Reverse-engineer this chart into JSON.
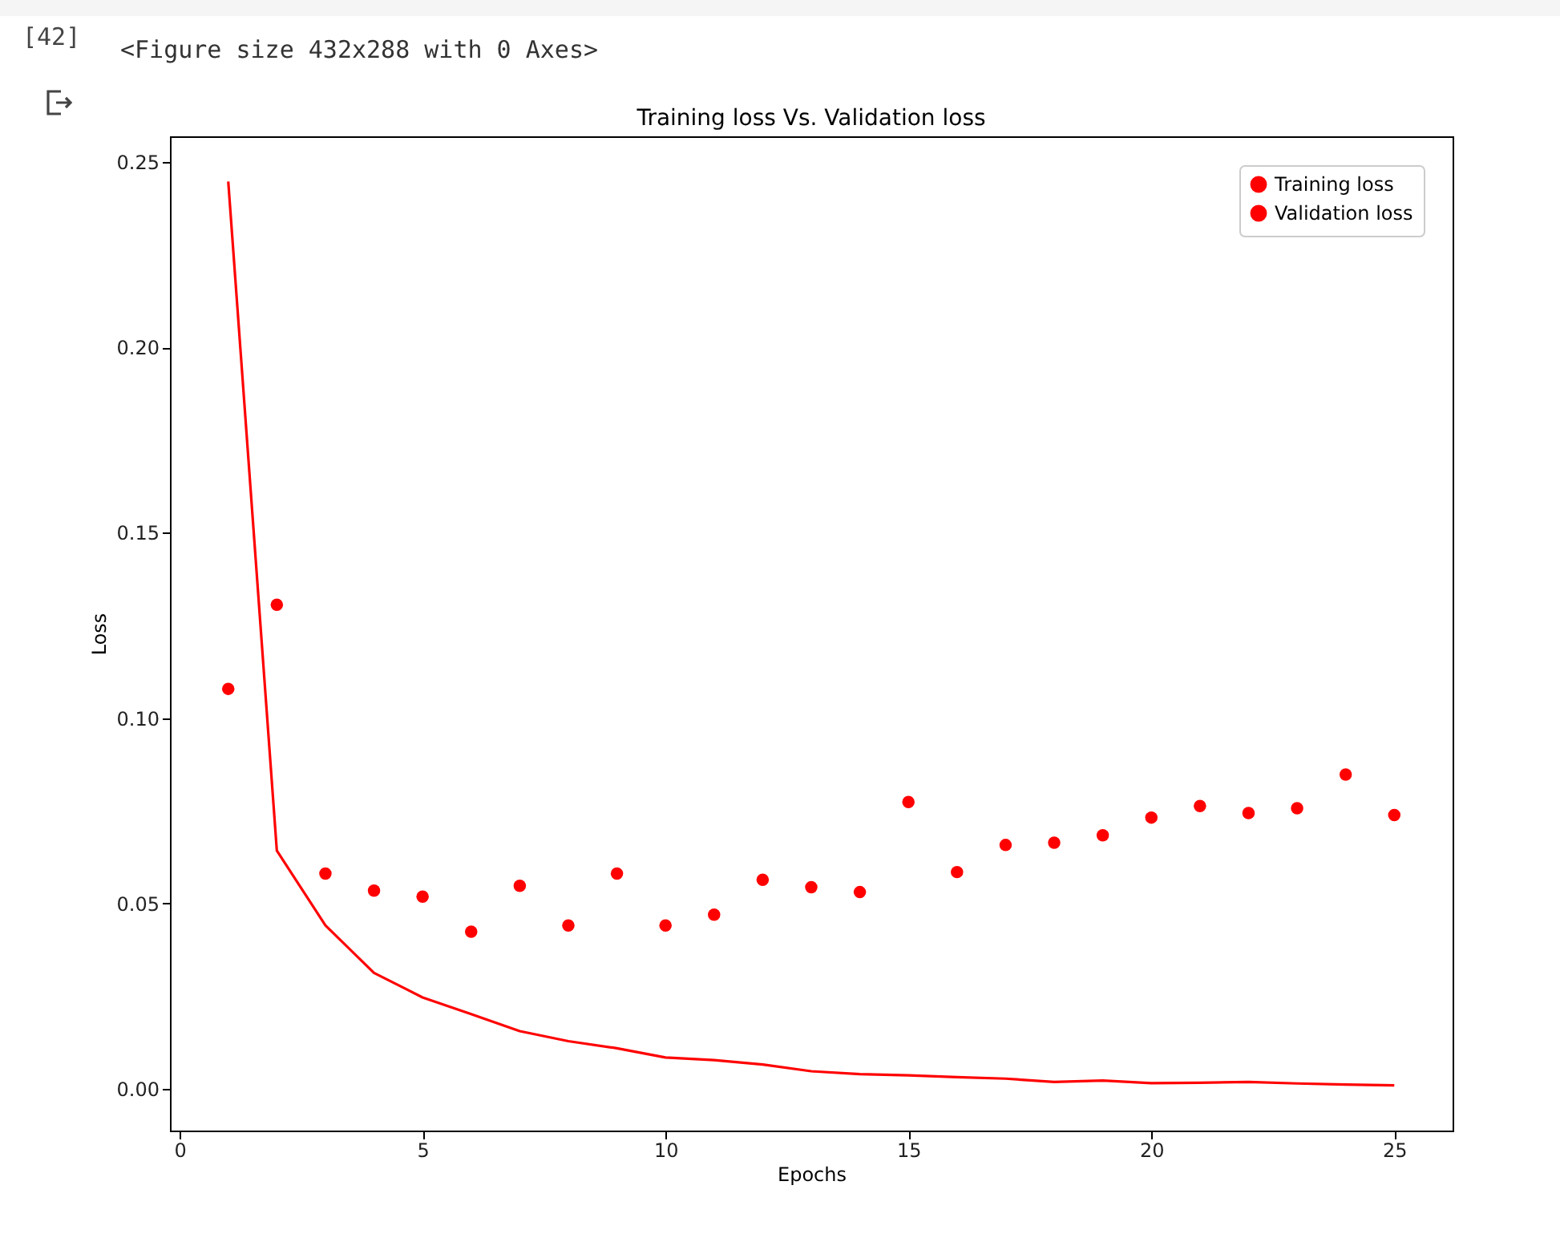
{
  "chart_data": {
    "type": "line",
    "title": "Training loss Vs. Validation loss",
    "xlabel": "Epochs",
    "ylabel": "Loss",
    "annotations": [
      "[42]",
      "<Figure size 432x288 with 0 Axes>"
    ],
    "x": [
      1,
      2,
      3,
      4,
      5,
      6,
      7,
      8,
      9,
      10,
      11,
      12,
      13,
      14,
      15,
      16,
      17,
      18,
      19,
      20,
      21,
      22,
      23,
      24,
      25
    ],
    "series": [
      {
        "name": "Training loss",
        "color": "#ff0000",
        "marker": "none",
        "line_style": "solid",
        "values": [
          0.2447,
          0.0643,
          0.0441,
          0.0313,
          0.0247,
          0.0202,
          0.0156,
          0.0129,
          0.011,
          0.0085,
          0.0078,
          0.0066,
          0.0048,
          0.004,
          0.0037,
          0.0032,
          0.0028,
          0.0019,
          0.0023,
          0.0016,
          0.0017,
          0.0019,
          0.0015,
          0.0012,
          0.001
        ]
      },
      {
        "name": "Validation loss",
        "type": "scatter",
        "color": "#ff0000",
        "marker": "circle",
        "values": [
          0.1079,
          0.1306,
          0.0581,
          0.0535,
          0.0519,
          0.0424,
          0.0548,
          0.0441,
          0.0581,
          0.0441,
          0.047,
          0.0564,
          0.0544,
          0.0531,
          0.0774,
          0.0585,
          0.0658,
          0.0664,
          0.0684,
          0.0732,
          0.0763,
          0.0744,
          0.0757,
          0.0848,
          0.0739
        ]
      }
    ],
    "xlim": [
      -0.2,
      26.2
    ],
    "xticks": [
      0,
      5,
      10,
      15,
      20,
      25
    ],
    "ylim": [
      -0.0112,
      0.2569
    ],
    "yticks": [
      {
        "value": 0,
        "label": "0.00"
      },
      {
        "value": 0.05,
        "label": "0.05"
      },
      {
        "value": 0.1,
        "label": "0.10"
      },
      {
        "value": 0.15,
        "label": "0.15"
      },
      {
        "value": 0.2,
        "label": "0.20"
      },
      {
        "value": 0.25,
        "label": "0.25"
      }
    ],
    "grid": false,
    "legend": "top right"
  }
}
